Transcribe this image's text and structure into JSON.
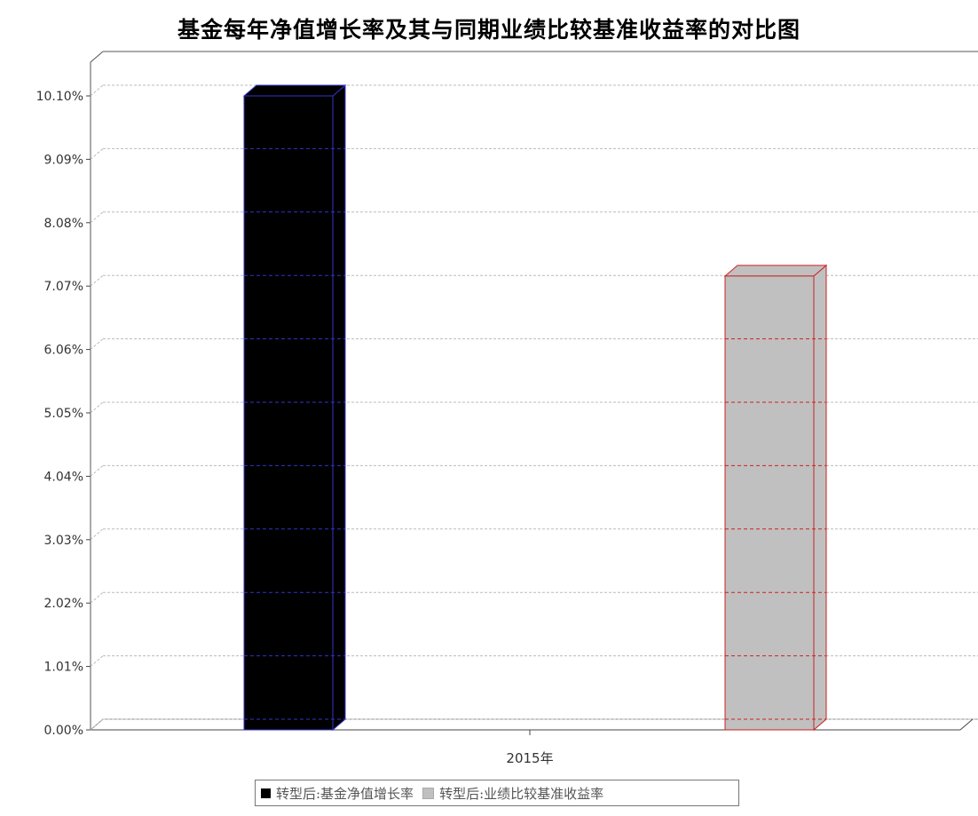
{
  "chart_data": {
    "type": "bar",
    "title": "基金每年净值增长率及其与同期业绩比较基准收益率的对比图",
    "categories": [
      "2015年"
    ],
    "series": [
      {
        "name": "转型后:基金净值增长率",
        "values": [
          10.1
        ],
        "color": "#000000",
        "edge": "#3333cc"
      },
      {
        "name": "转型后:业绩比较基准收益率",
        "values": [
          7.23
        ],
        "color": "#c0c0c0",
        "edge": "#cc2222"
      }
    ],
    "y_ticks": [
      "0.00%",
      "1.01%",
      "2.02%",
      "3.03%",
      "4.04%",
      "5.05%",
      "6.06%",
      "7.07%",
      "8.08%",
      "9.09%",
      "10.10%"
    ],
    "ylim": [
      0,
      10.1
    ],
    "grid": true,
    "legend_position": "bottom"
  }
}
